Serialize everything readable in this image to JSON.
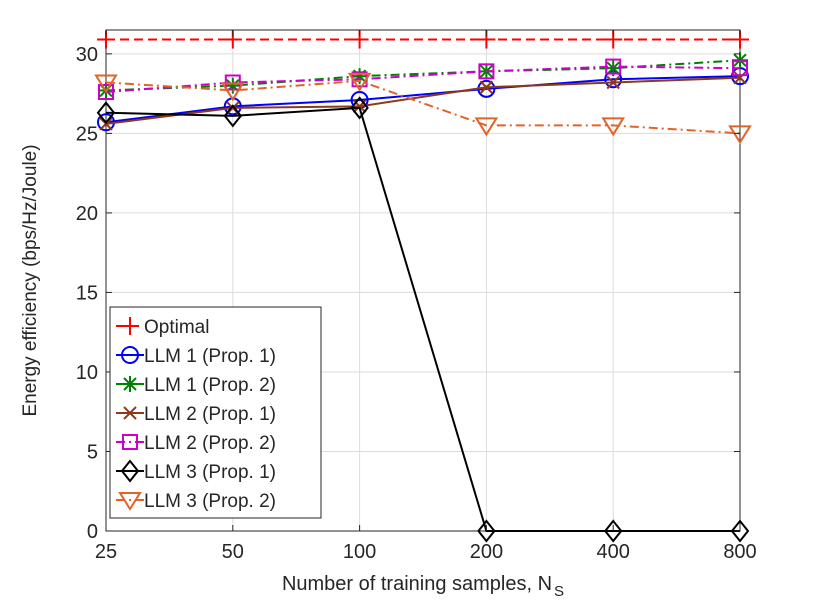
{
  "chart_data": {
    "type": "line",
    "xlabel": "Number of training samples, N",
    "xlabel_subscript": "S",
    "ylabel": "Energy efficiency (bps/Hz/Joule)",
    "categories": [
      "25",
      "50",
      "100",
      "200",
      "400",
      "800"
    ],
    "ylim": [
      0,
      31.5
    ],
    "yticks": [
      0,
      5,
      10,
      15,
      20,
      25,
      30
    ],
    "grid": true,
    "legend_position": "bottom-left",
    "series": [
      {
        "name": "Optimal",
        "values": [
          30.9,
          30.9,
          30.9,
          30.9,
          30.9,
          30.9
        ],
        "color": "#ff0000",
        "dash": "dashed",
        "marker": "plus"
      },
      {
        "name": "LLM 1 (Prop. 1)",
        "values": [
          25.7,
          26.7,
          27.1,
          27.8,
          28.4,
          28.6
        ],
        "color": "#0000ff",
        "dash": "solid",
        "marker": "circle"
      },
      {
        "name": "LLM 1 (Prop. 2)",
        "values": [
          27.7,
          28.0,
          28.6,
          28.9,
          29.1,
          29.6
        ],
        "color": "#008000",
        "dash": "dashdot",
        "marker": "asterisk"
      },
      {
        "name": "LLM 2 (Prop. 1)",
        "values": [
          25.6,
          26.6,
          26.7,
          27.9,
          28.2,
          28.5
        ],
        "color": "#8b3a1a",
        "dash": "solid",
        "marker": "x"
      },
      {
        "name": "LLM 2 (Prop. 2)",
        "values": [
          27.6,
          28.2,
          28.4,
          28.9,
          29.2,
          29.1
        ],
        "color": "#cc00cc",
        "dash": "dashdot",
        "marker": "square"
      },
      {
        "name": "LLM 3 (Prop. 1)",
        "values": [
          26.3,
          26.1,
          26.6,
          0,
          0,
          0
        ],
        "color": "#000000",
        "dash": "solid",
        "marker": "diamond"
      },
      {
        "name": "LLM 3 (Prop. 2)",
        "values": [
          28.2,
          27.7,
          28.3,
          25.5,
          25.5,
          25.0
        ],
        "color": "#e0642a",
        "dash": "dashdot",
        "marker": "triangle-down"
      }
    ]
  }
}
